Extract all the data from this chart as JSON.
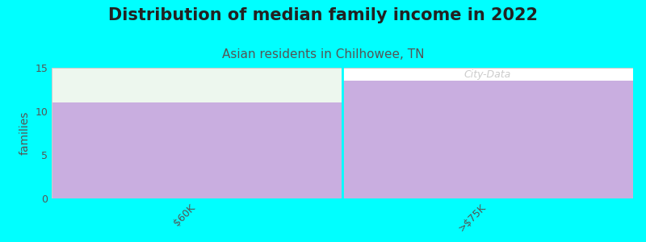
{
  "title": "Distribution of median family income in 2022",
  "subtitle": "Asian residents in Chilhowee, TN",
  "categories": [
    "$60K",
    ">$75K"
  ],
  "values": [
    11,
    13.5
  ],
  "bar_color": "#c9aee0",
  "background_color": "#00ffff",
  "plot_bg_color": "#ffffff",
  "first_bar_top_color": "#edf7ee",
  "ylabel": "families",
  "ylim": [
    0,
    15
  ],
  "yticks": [
    0,
    5,
    10,
    15
  ],
  "title_fontsize": 15,
  "title_color": "#222222",
  "subtitle_fontsize": 11,
  "subtitle_color": "#555555",
  "ylabel_fontsize": 10,
  "tick_label_fontsize": 9,
  "tick_label_color": "#555555",
  "watermark": "City-Data",
  "watermark_color": "#aaaaaa"
}
